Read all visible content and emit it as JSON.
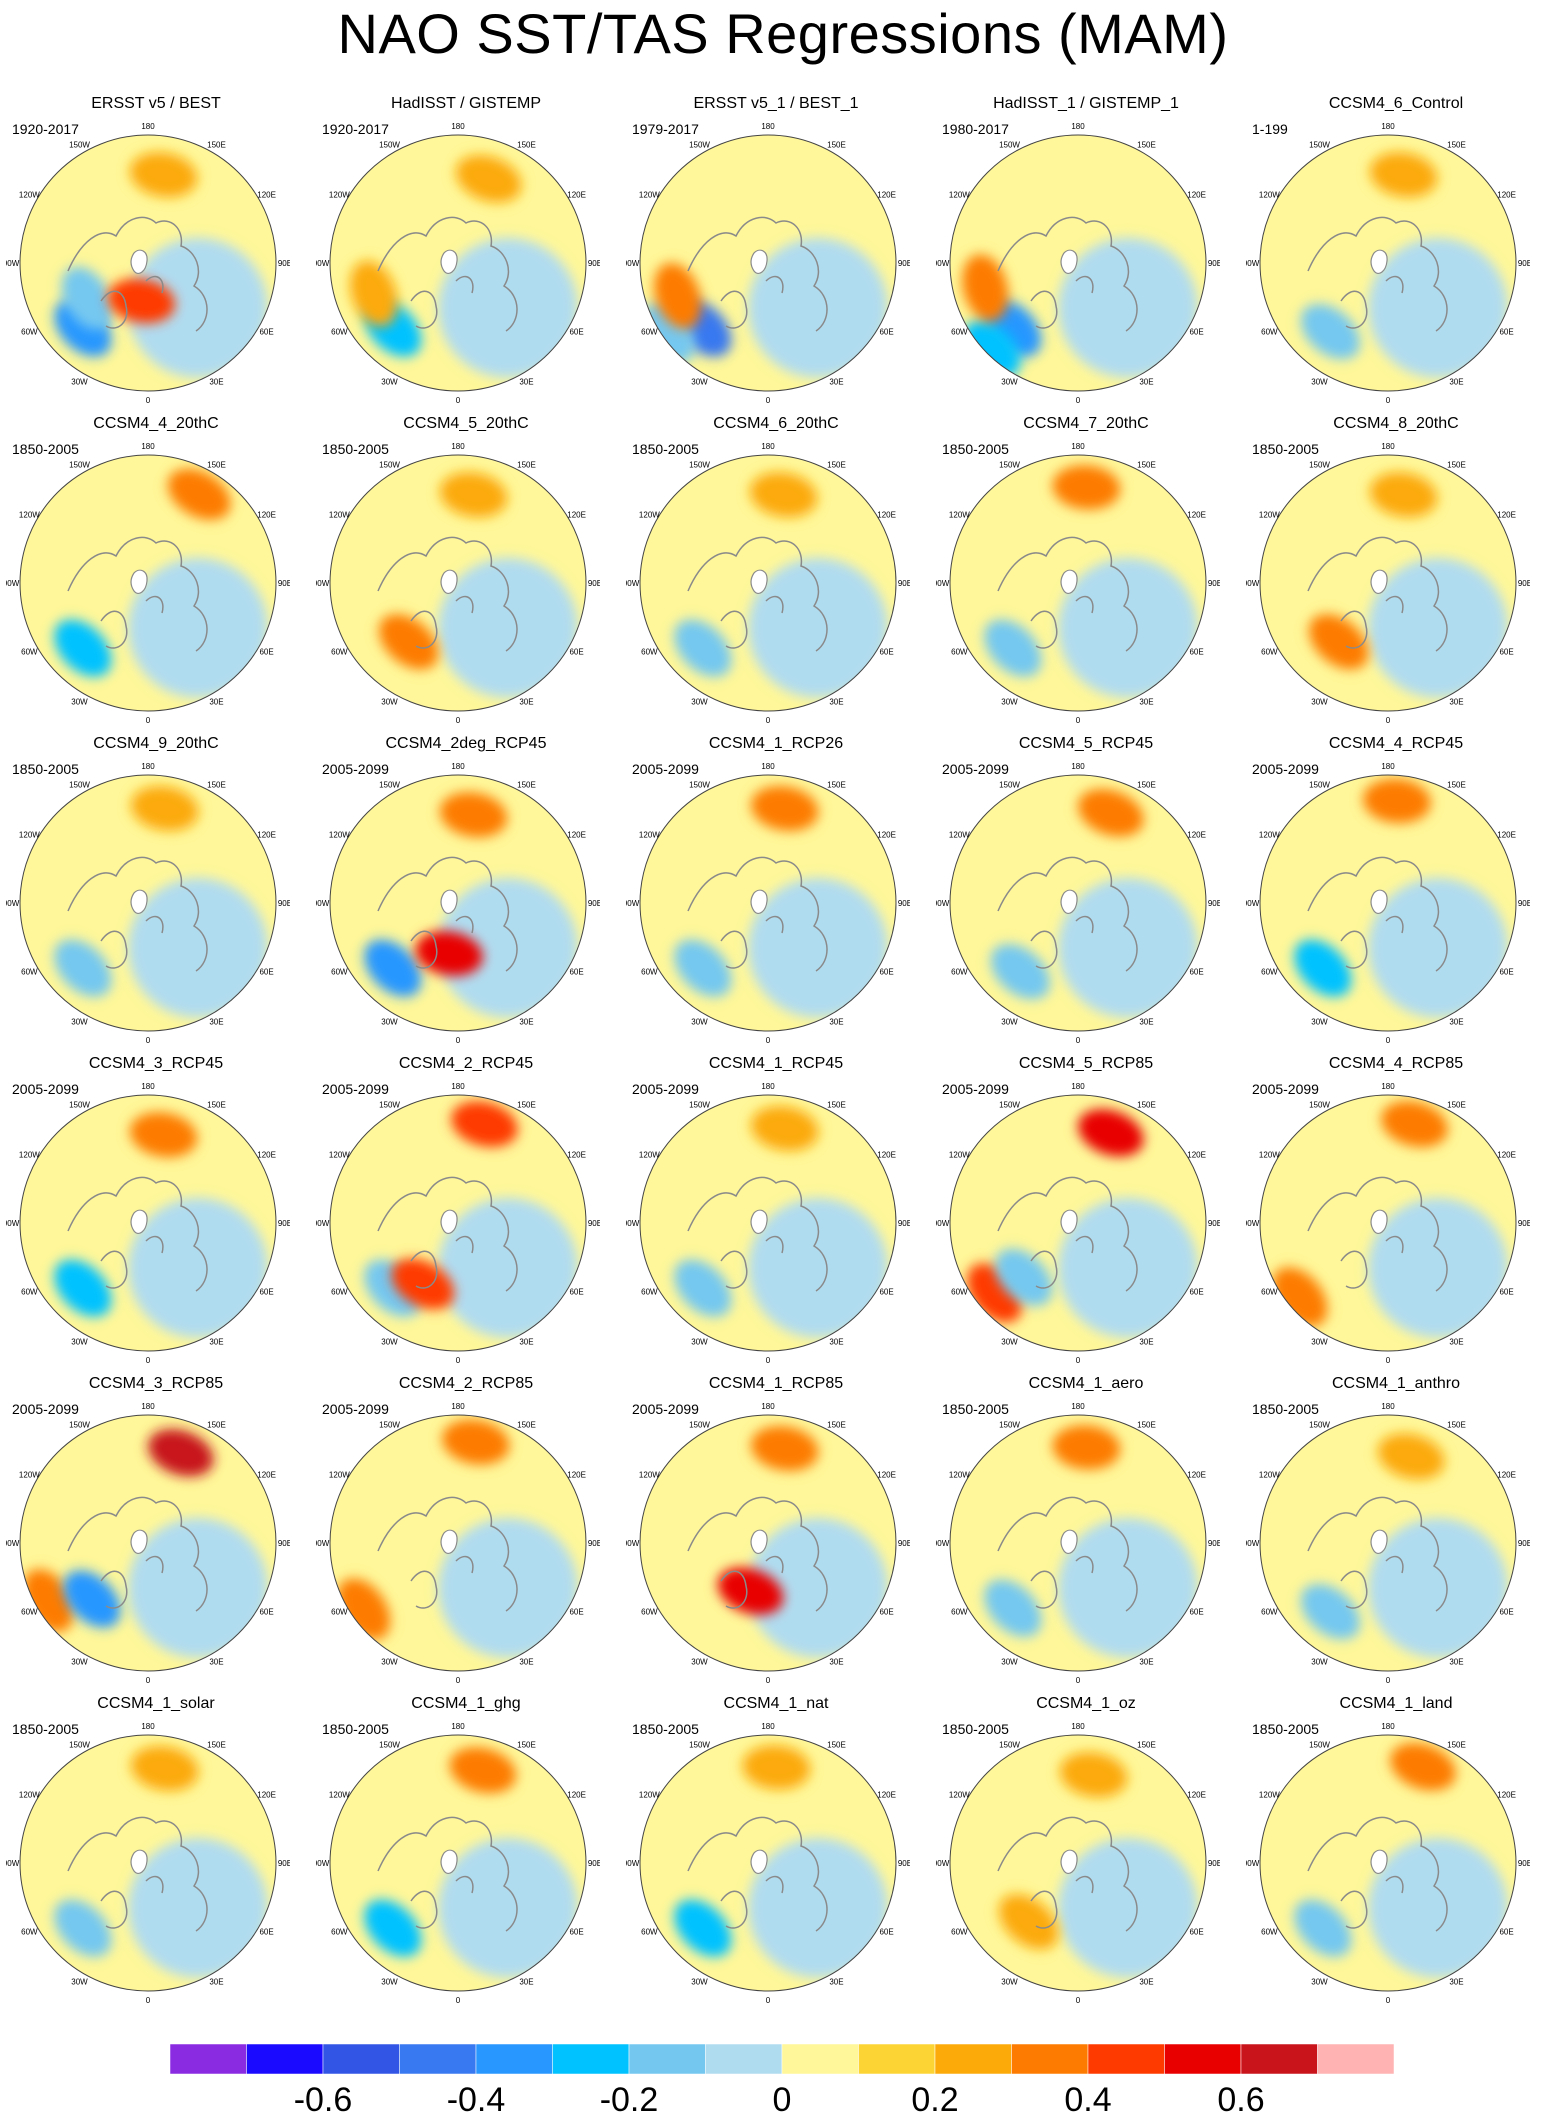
{
  "title": "NAO SST/TAS Regressions (MAM)",
  "lon_labels": {
    "top": "180",
    "bottom": "0",
    "upper_left": "150W",
    "upper_right": "150E",
    "mid_upper_left": "120W",
    "mid_upper_right": "120E",
    "mid_left": "90W",
    "mid_right": "90E",
    "mid_lower_left": "60W",
    "mid_lower_right": "60E",
    "lower_left": "30W",
    "lower_right": "30E"
  },
  "panels": [
    {
      "title": "ERSST v5 / BEST",
      "period": "1920-2017",
      "anomalies": [
        {
          "lon": -45,
          "r": 0.72,
          "v": -0.4
        },
        {
          "lon": -60,
          "r": 0.55,
          "v": -0.2
        },
        {
          "lon": -10,
          "r": 0.3,
          "v": 0.4
        },
        {
          "lon": 170,
          "r": 0.7,
          "v": 0.2
        }
      ]
    },
    {
      "title": "HadISST / GISTEMP",
      "period": "1920-2017",
      "anomalies": [
        {
          "lon": -45,
          "r": 0.72,
          "v": -0.3
        },
        {
          "lon": -70,
          "r": 0.7,
          "v": 0.2
        },
        {
          "lon": 160,
          "r": 0.7,
          "v": 0.2
        }
      ]
    },
    {
      "title": "ERSST v5_1 / BEST_1",
      "period": "1979-2017",
      "anomalies": [
        {
          "lon": -45,
          "r": 0.72,
          "v": -0.5
        },
        {
          "lon": -55,
          "r": 0.95,
          "v": -0.2
        },
        {
          "lon": -70,
          "r": 0.75,
          "v": 0.3
        }
      ]
    },
    {
      "title": "HadISST_1 / GISTEMP_1",
      "period": "1980-2017",
      "anomalies": [
        {
          "lon": -45,
          "r": 0.72,
          "v": -0.4
        },
        {
          "lon": -45,
          "r": 0.95,
          "v": -0.3
        },
        {
          "lon": -75,
          "r": 0.75,
          "v": 0.3
        }
      ]
    },
    {
      "title": "CCSM4_6_Control",
      "period": "1-199",
      "anomalies": [
        {
          "lon": -40,
          "r": 0.7,
          "v": -0.2
        },
        {
          "lon": 170,
          "r": 0.7,
          "v": 0.2
        }
      ]
    },
    {
      "title": "CCSM4_4_20thC",
      "period": "1850-2005",
      "anomalies": [
        {
          "lon": 150,
          "r": 0.8,
          "v": 0.3
        },
        {
          "lon": -45,
          "r": 0.72,
          "v": -0.3
        }
      ]
    },
    {
      "title": "CCSM4_5_20thC",
      "period": "1850-2005",
      "anomalies": [
        {
          "lon": 170,
          "r": 0.7,
          "v": 0.2
        },
        {
          "lon": -40,
          "r": 0.6,
          "v": 0.3
        }
      ]
    },
    {
      "title": "CCSM4_6_20thC",
      "period": "1850-2005",
      "anomalies": [
        {
          "lon": 170,
          "r": 0.7,
          "v": 0.2
        },
        {
          "lon": -45,
          "r": 0.72,
          "v": -0.2
        }
      ]
    },
    {
      "title": "CCSM4_7_20thC",
      "period": "1850-2005",
      "anomalies": [
        {
          "lon": 175,
          "r": 0.75,
          "v": 0.3
        },
        {
          "lon": -45,
          "r": 0.72,
          "v": -0.2
        }
      ]
    },
    {
      "title": "CCSM4_8_20thC",
      "period": "1850-2005",
      "anomalies": [
        {
          "lon": 170,
          "r": 0.7,
          "v": 0.2
        },
        {
          "lon": -40,
          "r": 0.6,
          "v": 0.3
        }
      ]
    },
    {
      "title": "CCSM4_9_20thC",
      "period": "1850-2005",
      "anomalies": [
        {
          "lon": 170,
          "r": 0.75,
          "v": 0.2
        },
        {
          "lon": -45,
          "r": 0.72,
          "v": -0.2
        }
      ]
    },
    {
      "title": "CCSM4_2deg_RCP45",
      "period": "2005-2099",
      "anomalies": [
        {
          "lon": 170,
          "r": 0.7,
          "v": 0.3
        },
        {
          "lon": -45,
          "r": 0.72,
          "v": -0.4
        },
        {
          "lon": -10,
          "r": 0.4,
          "v": 0.5
        }
      ]
    },
    {
      "title": "CCSM4_1_RCP26",
      "period": "2005-2099",
      "anomalies": [
        {
          "lon": 170,
          "r": 0.75,
          "v": 0.3
        },
        {
          "lon": -45,
          "r": 0.72,
          "v": -0.2
        }
      ]
    },
    {
      "title": "CCSM4_5_RCP45",
      "period": "2005-2099",
      "anomalies": [
        {
          "lon": 160,
          "r": 0.75,
          "v": 0.3
        },
        {
          "lon": -40,
          "r": 0.7,
          "v": -0.2
        }
      ]
    },
    {
      "title": "CCSM4_4_RCP45",
      "period": "2005-2099",
      "anomalies": [
        {
          "lon": 175,
          "r": 0.8,
          "v": 0.3
        },
        {
          "lon": -45,
          "r": 0.72,
          "v": -0.3
        }
      ]
    },
    {
      "title": "CCSM4_3_RCP45",
      "period": "2005-2099",
      "anomalies": [
        {
          "lon": 170,
          "r": 0.7,
          "v": 0.3
        },
        {
          "lon": -45,
          "r": 0.72,
          "v": -0.3
        }
      ]
    },
    {
      "title": "CCSM4_2_RCP45",
      "period": "2005-2099",
      "anomalies": [
        {
          "lon": 165,
          "r": 0.8,
          "v": 0.4
        },
        {
          "lon": -45,
          "r": 0.72,
          "v": -0.2
        },
        {
          "lon": -30,
          "r": 0.55,
          "v": 0.4
        }
      ]
    },
    {
      "title": "CCSM4_1_RCP45",
      "period": "2005-2099",
      "anomalies": [
        {
          "lon": 170,
          "r": 0.75,
          "v": 0.2
        },
        {
          "lon": -45,
          "r": 0.72,
          "v": -0.2
        }
      ]
    },
    {
      "title": "CCSM4_5_RCP85",
      "period": "2005-2099",
      "anomalies": [
        {
          "lon": 160,
          "r": 0.75,
          "v": 0.5
        },
        {
          "lon": -50,
          "r": 0.85,
          "v": 0.4
        },
        {
          "lon": -45,
          "r": 0.6,
          "v": -0.2
        }
      ]
    },
    {
      "title": "CCSM4_4_RCP85",
      "period": "2005-2099",
      "anomalies": [
        {
          "lon": 165,
          "r": 0.8,
          "v": 0.3
        },
        {
          "lon": -50,
          "r": 0.9,
          "v": 0.3
        }
      ]
    },
    {
      "title": "CCSM4_3_RCP85",
      "period": "2005-2099",
      "anomalies": [
        {
          "lon": 160,
          "r": 0.75,
          "v": 0.6
        },
        {
          "lon": -60,
          "r": 0.9,
          "v": 0.3
        },
        {
          "lon": -45,
          "r": 0.62,
          "v": -0.4
        }
      ]
    },
    {
      "title": "CCSM4_2_RCP85",
      "period": "2005-2099",
      "anomalies": [
        {
          "lon": 170,
          "r": 0.8,
          "v": 0.3
        },
        {
          "lon": -55,
          "r": 0.9,
          "v": 0.3
        }
      ]
    },
    {
      "title": "CCSM4_1_RCP85",
      "period": "2005-2099",
      "anomalies": [
        {
          "lon": 170,
          "r": 0.75,
          "v": 0.3
        },
        {
          "lon": -20,
          "r": 0.4,
          "v": 0.5
        }
      ]
    },
    {
      "title": "CCSM4_1_aero",
      "period": "1850-2005",
      "anomalies": [
        {
          "lon": 175,
          "r": 0.75,
          "v": 0.3
        },
        {
          "lon": -45,
          "r": 0.72,
          "v": -0.2
        }
      ]
    },
    {
      "title": "CCSM4_1_anthro",
      "period": "1850-2005",
      "anomalies": [
        {
          "lon": 165,
          "r": 0.7,
          "v": 0.2
        },
        {
          "lon": -40,
          "r": 0.7,
          "v": -0.2
        }
      ]
    },
    {
      "title": "CCSM4_1_solar",
      "period": "1850-2005",
      "anomalies": [
        {
          "lon": 170,
          "r": 0.75,
          "v": 0.2
        },
        {
          "lon": -45,
          "r": 0.72,
          "v": -0.2
        }
      ]
    },
    {
      "title": "CCSM4_1_ghg",
      "period": "1850-2005",
      "anomalies": [
        {
          "lon": 165,
          "r": 0.75,
          "v": 0.3
        },
        {
          "lon": -45,
          "r": 0.72,
          "v": -0.3
        }
      ]
    },
    {
      "title": "CCSM4_1_nat",
      "period": "1850-2005",
      "anomalies": [
        {
          "lon": 175,
          "r": 0.75,
          "v": 0.2
        },
        {
          "lon": -45,
          "r": 0.72,
          "v": -0.3
        }
      ]
    },
    {
      "title": "CCSM4_1_oz",
      "period": "1850-2005",
      "anomalies": [
        {
          "lon": 170,
          "r": 0.7,
          "v": 0.2
        },
        {
          "lon": -40,
          "r": 0.6,
          "v": 0.2
        }
      ]
    },
    {
      "title": "CCSM4_1_land",
      "period": "1850-2005",
      "anomalies": [
        {
          "lon": 160,
          "r": 0.8,
          "v": 0.3
        },
        {
          "lon": -45,
          "r": 0.72,
          "v": -0.2
        }
      ]
    }
  ],
  "colorbar": {
    "colors": [
      "#8a2be2",
      "#1a0aff",
      "#3255e6",
      "#3878f0",
      "#2897ff",
      "#00c2ff",
      "#74c8f0",
      "#b0dcf0",
      "#fff799",
      "#fcd535",
      "#fcaa0a",
      "#fd7b00",
      "#fe3a00",
      "#e80000",
      "#c8141a",
      "#ffb3b3"
    ],
    "tick_labels": [
      "-0.6",
      "-0.4",
      "-0.2",
      "0",
      "0.2",
      "0.4",
      "0.6"
    ]
  }
}
